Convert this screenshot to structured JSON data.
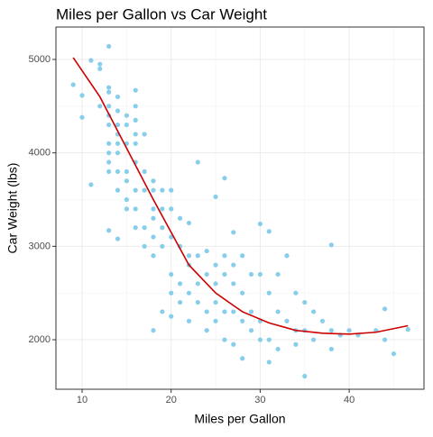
{
  "chart_data": {
    "type": "scatter",
    "title": "Miles per Gallon vs Car Weight",
    "x_label": "Miles per Gallon",
    "y_label": "Car Weight (lbs)",
    "xlim": [
      7.06,
      48.4
    ],
    "ylim": [
      1470,
      5347
    ],
    "xticks": [
      10,
      20,
      30,
      40
    ],
    "yticks": [
      2000,
      3000,
      4000,
      5000
    ],
    "xminor": [
      15,
      25,
      35,
      45
    ],
    "yminor": [
      2500,
      3500,
      4500
    ],
    "grid": true,
    "points": {
      "color": "#87ceeb",
      "x": [
        9,
        10,
        10,
        11,
        11,
        12,
        12,
        12,
        13,
        13,
        13,
        13,
        13,
        13,
        13,
        13,
        13,
        13,
        13,
        14,
        14,
        14,
        14,
        14,
        14,
        14,
        14,
        14,
        15,
        15,
        15,
        15,
        15,
        15,
        15,
        16,
        16,
        16,
        16,
        16,
        16,
        16,
        16,
        16,
        17,
        17,
        17,
        17,
        17,
        18,
        18,
        18,
        18,
        18,
        18,
        18,
        19,
        19,
        19,
        19,
        19,
        20,
        20,
        20,
        20,
        20,
        20,
        21,
        21,
        21,
        21,
        22,
        22,
        22,
        22,
        22,
        23,
        23,
        23,
        23,
        24,
        24,
        24,
        24,
        25,
        25,
        25,
        25,
        25,
        26,
        26,
        26,
        26,
        26,
        27,
        27,
        27,
        27,
        27,
        28,
        28,
        28,
        28,
        29,
        29,
        29,
        30,
        30,
        30,
        30,
        31,
        31,
        31,
        31,
        32,
        32,
        32,
        33,
        33,
        34,
        34,
        34,
        35,
        35,
        35,
        36,
        36,
        37,
        38,
        38,
        38,
        39,
        40,
        41,
        43,
        44,
        44,
        45,
        46.6
      ],
      "y": [
        4730,
        4380,
        4615,
        4990,
        3660,
        4950,
        4900,
        4500,
        5140,
        4700,
        4650,
        4500,
        4400,
        4300,
        4100,
        4000,
        3900,
        3800,
        3170,
        4600,
        4450,
        4300,
        4200,
        4100,
        4000,
        3800,
        3080,
        3600,
        4400,
        4300,
        4100,
        3800,
        3700,
        3500,
        3400,
        4670,
        4500,
        4350,
        4200,
        4100,
        3900,
        3600,
        3400,
        3200,
        4200,
        3800,
        3600,
        3200,
        3000,
        3700,
        3600,
        3400,
        3300,
        3100,
        2900,
        2100,
        3600,
        3400,
        3200,
        3000,
        2300,
        3600,
        3400,
        3100,
        2700,
        2500,
        2250,
        3300,
        3000,
        2600,
        2400,
        3250,
        2900,
        2800,
        2500,
        2200,
        3900,
        2900,
        2600,
        2400,
        2950,
        2700,
        2300,
        2100,
        3530,
        2800,
        2600,
        2400,
        2200,
        3730,
        2900,
        2700,
        2300,
        2000,
        3150,
        2800,
        2600,
        2300,
        1950,
        2900,
        2500,
        2200,
        1800,
        2700,
        2300,
        2100,
        3240,
        2700,
        2200,
        2000,
        3160,
        2500,
        2000,
        1760,
        2700,
        2300,
        1900,
        2900,
        2200,
        2500,
        2100,
        1950,
        2400,
        2100,
        1610,
        2300,
        2000,
        2200,
        3015,
        2100,
        1900,
        2050,
        2100,
        2050,
        2100,
        2330,
        2000,
        1850,
        2110
      ]
    },
    "trend": {
      "color": "#cc0000",
      "x": [
        9,
        12,
        15,
        18,
        20,
        22,
        25,
        28,
        31,
        34,
        37,
        40,
        43,
        46.6
      ],
      "y": [
        5020,
        4600,
        4050,
        3500,
        3150,
        2800,
        2500,
        2300,
        2180,
        2100,
        2070,
        2060,
        2080,
        2150
      ]
    }
  }
}
